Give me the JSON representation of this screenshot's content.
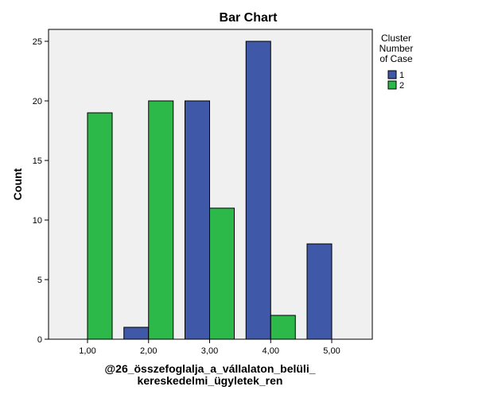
{
  "chart_data": {
    "type": "bar",
    "title": "Bar Chart",
    "xlabel": [
      "@26_összefoglalja_a_vállalaton_belüli_",
      "kereskedelmi_ügyletek_ren"
    ],
    "ylabel": "Count",
    "categories": [
      "1,00",
      "2,00",
      "3,00",
      "4,00",
      "5,00"
    ],
    "series": [
      {
        "name": "1",
        "color": "#3f58a8",
        "values": [
          0,
          1,
          20,
          25,
          8
        ]
      },
      {
        "name": "2",
        "color": "#2db84a",
        "values": [
          19,
          20,
          11,
          2,
          0
        ]
      }
    ],
    "ylim": [
      0,
      26
    ],
    "yticks": [
      0,
      5,
      10,
      15,
      20,
      25
    ],
    "legend": {
      "title": [
        "Cluster",
        "Number",
        "of Case"
      ],
      "placement": "right"
    },
    "plot_background": "#f0f0f0",
    "grid": false
  }
}
